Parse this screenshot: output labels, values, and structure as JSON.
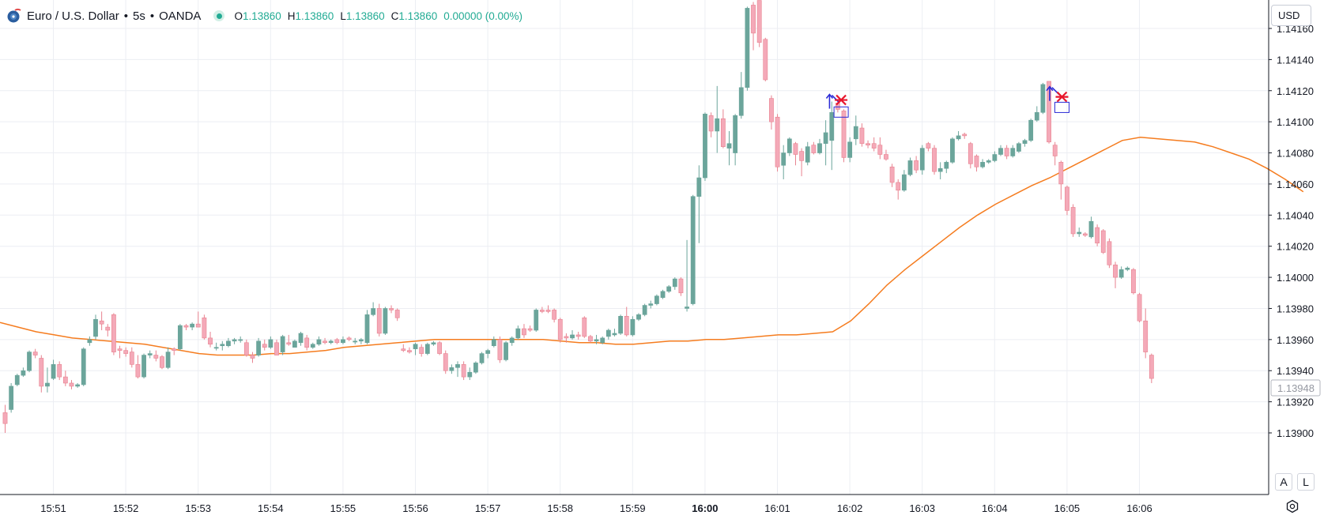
{
  "legend": {
    "symbol": "Euro / U.S. Dollar",
    "separator": "•",
    "interval": "5s",
    "exchange": "OANDA",
    "ohlc": {
      "o_label": "O",
      "o": "1.13860",
      "h_label": "H",
      "h": "1.13860",
      "l_label": "L",
      "l": "1.13860",
      "c_label": "C",
      "c": "1.13860",
      "change": "0.00000 (0.00%)"
    }
  },
  "currency": "USD",
  "axis_buttons": {
    "auto": "A",
    "log": "L"
  },
  "colors": {
    "up": "#6ba59b",
    "down": "#f4a9b8",
    "down_border": "#e8828f",
    "ma": "#f57c1f",
    "grid": "#eceef3",
    "axis_text": "#131722",
    "marker_arrow": "#2b2bd6",
    "marker_cross": "#e8162c"
  },
  "chart_data": {
    "type": "candlestick",
    "x_tick_labels": [
      "15:51",
      "15:52",
      "15:53",
      "15:54",
      "15:55",
      "15:56",
      "15:57",
      "15:58",
      "15:59",
      "16:00",
      "16:01",
      "16:02",
      "16:03",
      "16:04",
      "16:05",
      "16:06"
    ],
    "y_tick_labels": [
      "1.14160",
      "1.14140",
      "1.14120",
      "1.14100",
      "1.14080",
      "1.14060",
      "1.14040",
      "1.14020",
      "1.14000",
      "1.13980",
      "1.13960",
      "1.13940",
      "1.13920",
      "1.13900"
    ],
    "ylim": [
      1.13895,
      1.14183
    ],
    "last_price_label": "1.13948",
    "candles_per_minute": 12,
    "ohlc": [
      [
        1.13913,
        1.13918,
        1.139,
        1.13906
      ],
      [
        1.13915,
        1.13932,
        1.13913,
        1.1393
      ],
      [
        1.13931,
        1.13938,
        1.1393,
        1.13937
      ],
      [
        1.13937,
        1.13942,
        1.13936,
        1.1394
      ],
      [
        1.1394,
        1.13953,
        1.13939,
        1.13952
      ],
      [
        1.13952,
        1.13954,
        1.13948,
        1.1395
      ],
      [
        1.13948,
        1.1395,
        1.13926,
        1.1393
      ],
      [
        1.1393,
        1.13942,
        1.13926,
        1.13932
      ],
      [
        1.13935,
        1.13947,
        1.13934,
        1.13944
      ],
      [
        1.13944,
        1.13946,
        1.13934,
        1.13936
      ],
      [
        1.13936,
        1.1394,
        1.1393,
        1.13932
      ],
      [
        1.13932,
        1.13934,
        1.13928,
        1.1393
      ],
      [
        1.1393,
        1.13932,
        1.13929,
        1.13931
      ],
      [
        1.13931,
        1.13955,
        1.1393,
        1.13954
      ],
      [
        1.13958,
        1.13962,
        1.13956,
        1.1396
      ],
      [
        1.13962,
        1.13976,
        1.1396,
        1.13973
      ],
      [
        1.13972,
        1.13978,
        1.13966,
        1.1397
      ],
      [
        1.13968,
        1.1397,
        1.13962,
        1.13966
      ],
      [
        1.13976,
        1.13977,
        1.1395,
        1.13952
      ],
      [
        1.13954,
        1.13956,
        1.13948,
        1.13953
      ],
      [
        1.13953,
        1.13955,
        1.13949,
        1.13951
      ],
      [
        1.13952,
        1.13955,
        1.13942,
        1.13944
      ],
      [
        1.13944,
        1.1395,
        1.13935,
        1.13936
      ],
      [
        1.13936,
        1.13951,
        1.13935,
        1.1395
      ],
      [
        1.1395,
        1.13953,
        1.13948,
        1.13951
      ],
      [
        1.1395,
        1.13953,
        1.13946,
        1.13948
      ],
      [
        1.13949,
        1.1395,
        1.13941,
        1.13942
      ],
      [
        1.13942,
        1.13955,
        1.13941,
        1.13952
      ],
      [
        1.13954,
        1.13955,
        1.1395,
        1.13953
      ],
      [
        1.13954,
        1.1397,
        1.13953,
        1.13969
      ],
      [
        1.13969,
        1.1397,
        1.13966,
        1.13968
      ],
      [
        1.13968,
        1.13971,
        1.13966,
        1.1397
      ],
      [
        1.1397,
        1.13978,
        1.13968,
        1.13968
      ],
      [
        1.13974,
        1.13976,
        1.1396,
        1.13961
      ],
      [
        1.13961,
        1.13965,
        1.13955,
        1.13957
      ],
      [
        1.13955,
        1.13958,
        1.13953,
        1.13955
      ],
      [
        1.13956,
        1.13959,
        1.13953,
        1.13957
      ],
      [
        1.13956,
        1.13961,
        1.13955,
        1.13959
      ],
      [
        1.13959,
        1.13961,
        1.13957,
        1.1396
      ],
      [
        1.1396,
        1.13962,
        1.13958,
        1.1396
      ],
      [
        1.13958,
        1.1396,
        1.13949,
        1.1395
      ],
      [
        1.1395,
        1.13952,
        1.13945,
        1.13948
      ],
      [
        1.1395,
        1.13961,
        1.13949,
        1.13959
      ],
      [
        1.13957,
        1.1396,
        1.13953,
        1.13955
      ],
      [
        1.13955,
        1.13962,
        1.13954,
        1.1396
      ],
      [
        1.13958,
        1.1396,
        1.1395,
        1.1395
      ],
      [
        1.13952,
        1.13963,
        1.1395,
        1.13962
      ],
      [
        1.13958,
        1.13963,
        1.13956,
        1.13957
      ],
      [
        1.13955,
        1.1396,
        1.13955,
        1.13959
      ],
      [
        1.13958,
        1.13965,
        1.13956,
        1.13964
      ],
      [
        1.13961,
        1.13963,
        1.13953,
        1.13955
      ],
      [
        1.13955,
        1.13958,
        1.13954,
        1.13957
      ],
      [
        1.13957,
        1.13962,
        1.13956,
        1.1396
      ],
      [
        1.13959,
        1.13961,
        1.13957,
        1.13958
      ],
      [
        1.13958,
        1.1396,
        1.13957,
        1.13959
      ],
      [
        1.1396,
        1.13961,
        1.13957,
        1.13958
      ],
      [
        1.13958,
        1.13962,
        1.13957,
        1.1396
      ],
      [
        1.13961,
        1.13962,
        1.13959,
        1.1396
      ],
      [
        1.13959,
        1.13961,
        1.13957,
        1.13959
      ],
      [
        1.13959,
        1.13961,
        1.13957,
        1.1396
      ],
      [
        1.13958,
        1.13979,
        1.13957,
        1.13976
      ],
      [
        1.13976,
        1.13984,
        1.13975,
        1.1398
      ],
      [
        1.1398,
        1.13983,
        1.13962,
        1.13964
      ],
      [
        1.13964,
        1.13981,
        1.13963,
        1.1398
      ],
      [
        1.1398,
        1.13982,
        1.13977,
        1.13979
      ],
      [
        1.13979,
        1.1398,
        1.13972,
        1.13974
      ],
      [
        1.13954,
        1.13957,
        1.13952,
        1.13953
      ],
      [
        1.13953,
        1.13955,
        1.13951,
        1.13952
      ],
      [
        1.13954,
        1.13958,
        1.1395,
        1.13957
      ],
      [
        1.13955,
        1.13957,
        1.13949,
        1.13951
      ],
      [
        1.13951,
        1.13958,
        1.1395,
        1.13957
      ],
      [
        1.13957,
        1.13959,
        1.13956,
        1.13958
      ],
      [
        1.13958,
        1.13959,
        1.1395,
        1.13951
      ],
      [
        1.13951,
        1.13953,
        1.13938,
        1.1394
      ],
      [
        1.1394,
        1.13944,
        1.13938,
        1.13942
      ],
      [
        1.13942,
        1.13946,
        1.13936,
        1.13944
      ],
      [
        1.13944,
        1.13946,
        1.13934,
        1.13936
      ],
      [
        1.13936,
        1.13942,
        1.13934,
        1.13939
      ],
      [
        1.13939,
        1.13946,
        1.13938,
        1.13945
      ],
      [
        1.13945,
        1.13952,
        1.13944,
        1.13951
      ],
      [
        1.13951,
        1.13954,
        1.13948,
        1.13953
      ],
      [
        1.13956,
        1.13962,
        1.13955,
        1.1396
      ],
      [
        1.1396,
        1.13962,
        1.13945,
        1.13947
      ],
      [
        1.13947,
        1.13959,
        1.13946,
        1.13958
      ],
      [
        1.13958,
        1.13962,
        1.13956,
        1.13961
      ],
      [
        1.13961,
        1.13969,
        1.1396,
        1.13967
      ],
      [
        1.13967,
        1.1397,
        1.13961,
        1.13963
      ],
      [
        1.13967,
        1.13969,
        1.13965,
        1.13966
      ],
      [
        1.13966,
        1.1398,
        1.13965,
        1.13979
      ],
      [
        1.13979,
        1.13981,
        1.13977,
        1.13978
      ],
      [
        1.13979,
        1.13982,
        1.13977,
        1.13978
      ],
      [
        1.13979,
        1.1398,
        1.13971,
        1.13973
      ],
      [
        1.13973,
        1.13974,
        1.13958,
        1.1396
      ],
      [
        1.13962,
        1.13964,
        1.13958,
        1.13961
      ],
      [
        1.13961,
        1.13966,
        1.1396,
        1.13963
      ],
      [
        1.13963,
        1.13965,
        1.1396,
        1.13962
      ],
      [
        1.13974,
        1.13975,
        1.13961,
        1.13962
      ],
      [
        1.13962,
        1.13963,
        1.13958,
        1.13959
      ],
      [
        1.13959,
        1.13963,
        1.13957,
        1.1396
      ],
      [
        1.13958,
        1.13962,
        1.13957,
        1.13961
      ],
      [
        1.13962,
        1.13967,
        1.1396,
        1.13966
      ],
      [
        1.13963,
        1.13967,
        1.13962,
        1.13964
      ],
      [
        1.13964,
        1.13976,
        1.13963,
        1.13975
      ],
      [
        1.13975,
        1.13981,
        1.13962,
        1.13963
      ],
      [
        1.13963,
        1.13975,
        1.13962,
        1.13973
      ],
      [
        1.13973,
        1.13977,
        1.13972,
        1.13976
      ],
      [
        1.13976,
        1.13983,
        1.13975,
        1.13982
      ],
      [
        1.13982,
        1.13985,
        1.1398,
        1.13983
      ],
      [
        1.13983,
        1.13989,
        1.13982,
        1.13988
      ],
      [
        1.13987,
        1.13992,
        1.13986,
        1.13991
      ],
      [
        1.13991,
        1.13995,
        1.1399,
        1.13994
      ],
      [
        1.13994,
        1.14,
        1.13992,
        1.13999
      ],
      [
        1.13999,
        1.14,
        1.13988,
        1.1399
      ],
      [
        1.1398,
        1.14024,
        1.13978,
        1.13981
      ],
      [
        1.13983,
        1.14053,
        1.13982,
        1.14052
      ],
      [
        1.14052,
        1.14072,
        1.14022,
        1.14064
      ],
      [
        1.14064,
        1.14106,
        1.14062,
        1.14105
      ],
      [
        1.14104,
        1.14106,
        1.1409,
        1.14094
      ],
      [
        1.14094,
        1.14123,
        1.1408,
        1.14102
      ],
      [
        1.14102,
        1.14108,
        1.14083,
        1.14084
      ],
      [
        1.14083,
        1.14094,
        1.14072,
        1.14086
      ],
      [
        1.1408,
        1.14105,
        1.14072,
        1.14104
      ],
      [
        1.14104,
        1.14132,
        1.14102,
        1.14122
      ],
      [
        1.14122,
        1.14174,
        1.1412,
        1.14173
      ],
      [
        1.14175,
        1.14177,
        1.14146,
        1.14157
      ],
      [
        1.14178,
        1.14178,
        1.14148,
        1.14151
      ],
      [
        1.14153,
        1.14154,
        1.14126,
        1.14127
      ],
      [
        1.14115,
        1.14117,
        1.14095,
        1.141
      ],
      [
        1.14103,
        1.14105,
        1.14068,
        1.14071
      ],
      [
        1.14072,
        1.14085,
        1.14063,
        1.1408
      ],
      [
        1.1408,
        1.1409,
        1.14078,
        1.14089
      ],
      [
        1.14086,
        1.14087,
        1.14072,
        1.14079
      ],
      [
        1.14081,
        1.14083,
        1.14065,
        1.14075
      ],
      [
        1.14074,
        1.14087,
        1.14072,
        1.14084
      ],
      [
        1.14085,
        1.14087,
        1.14079,
        1.1408
      ],
      [
        1.1408,
        1.14089,
        1.14079,
        1.14086
      ],
      [
        1.14086,
        1.14101,
        1.14072,
        1.14093
      ],
      [
        1.14088,
        1.14113,
        1.14069,
        1.14106
      ],
      [
        1.14112,
        1.14114,
        1.14106,
        1.14108
      ],
      [
        1.14107,
        1.14108,
        1.14074,
        1.14077
      ],
      [
        1.14077,
        1.1409,
        1.14074,
        1.14087
      ],
      [
        1.14089,
        1.14104,
        1.14085,
        1.14097
      ],
      [
        1.14096,
        1.14099,
        1.14084,
        1.14086
      ],
      [
        1.14086,
        1.14088,
        1.14083,
        1.14085
      ],
      [
        1.14086,
        1.1409,
        1.14081,
        1.14083
      ],
      [
        1.14085,
        1.1409,
        1.14076,
        1.14079
      ],
      [
        1.14079,
        1.14082,
        1.14075,
        1.14076
      ],
      [
        1.14071,
        1.14073,
        1.14058,
        1.14061
      ],
      [
        1.14061,
        1.14063,
        1.1405,
        1.14056
      ],
      [
        1.14056,
        1.14069,
        1.14055,
        1.14066
      ],
      [
        1.14066,
        1.14077,
        1.14065,
        1.14075
      ],
      [
        1.14075,
        1.14078,
        1.14067,
        1.14069
      ],
      [
        1.14069,
        1.14085,
        1.14066,
        1.14083
      ],
      [
        1.14086,
        1.14087,
        1.14081,
        1.14083
      ],
      [
        1.14083,
        1.14085,
        1.14066,
        1.14068
      ],
      [
        1.14068,
        1.14074,
        1.14063,
        1.1407
      ],
      [
        1.1407,
        1.14075,
        1.14067,
        1.14074
      ],
      [
        1.14074,
        1.1409,
        1.14073,
        1.14089
      ],
      [
        1.14089,
        1.14094,
        1.14088,
        1.14091
      ],
      [
        1.14092,
        1.14093,
        1.14089,
        1.14091
      ],
      [
        1.14086,
        1.14087,
        1.1407,
        1.14073
      ],
      [
        1.14078,
        1.14079,
        1.14068,
        1.14071
      ],
      [
        1.14071,
        1.14076,
        1.1407,
        1.14074
      ],
      [
        1.14074,
        1.14076,
        1.14073,
        1.14075
      ],
      [
        1.14075,
        1.14081,
        1.14074,
        1.14079
      ],
      [
        1.14079,
        1.14085,
        1.14078,
        1.14083
      ],
      [
        1.14083,
        1.14085,
        1.14076,
        1.14078
      ],
      [
        1.14078,
        1.14085,
        1.14077,
        1.14083
      ],
      [
        1.14081,
        1.14087,
        1.1408,
        1.14086
      ],
      [
        1.14086,
        1.14089,
        1.14084,
        1.14088
      ],
      [
        1.14088,
        1.14102,
        1.14087,
        1.14101
      ],
      [
        1.14101,
        1.1411,
        1.141,
        1.14106
      ],
      [
        1.14106,
        1.14125,
        1.14105,
        1.14124
      ],
      [
        1.14126,
        1.14126,
        1.14086,
        1.14087
      ],
      [
        1.14085,
        1.14087,
        1.14072,
        1.14078
      ],
      [
        1.14074,
        1.14075,
        1.1405,
        1.1406
      ],
      [
        1.14058,
        1.14059,
        1.1404,
        1.14043
      ],
      [
        1.14045,
        1.14047,
        1.14026,
        1.14028
      ],
      [
        1.14028,
        1.14032,
        1.14026,
        1.14029
      ],
      [
        1.14028,
        1.14029,
        1.14026,
        1.14027
      ],
      [
        1.14026,
        1.14039,
        1.14025,
        1.14036
      ],
      [
        1.14032,
        1.14034,
        1.1402,
        1.14022
      ],
      [
        1.1403,
        1.14031,
        1.14015,
        1.14016
      ],
      [
        1.14023,
        1.14025,
        1.14006,
        1.14008
      ],
      [
        1.14008,
        1.1401,
        1.13993,
        1.14
      ],
      [
        1.14,
        1.14007,
        1.13999,
        1.14005
      ],
      [
        1.14005,
        1.14007,
        1.14004,
        1.14006
      ],
      [
        1.14005,
        1.14006,
        1.13989,
        1.1399
      ],
      [
        1.13989,
        1.1399,
        1.13971,
        1.13972
      ],
      [
        1.13972,
        1.1398,
        1.13948,
        1.13952
      ],
      [
        1.1395,
        1.13951,
        1.13932,
        1.13935
      ]
    ],
    "moving_average": {
      "points_per_minute": 4,
      "values": [
        1.13971,
        1.13968,
        1.13965,
        1.13963,
        1.13961,
        1.1396,
        1.13959,
        1.13958,
        1.13957,
        1.13955,
        1.13953,
        1.13951,
        1.1395,
        1.1395,
        1.1395,
        1.13951,
        1.13951,
        1.13952,
        1.13953,
        1.13955,
        1.13956,
        1.13957,
        1.13958,
        1.13959,
        1.1396,
        1.1396,
        1.1396,
        1.1396,
        1.1396,
        1.1396,
        1.1396,
        1.13959,
        1.13958,
        1.13958,
        1.13957,
        1.13957,
        1.13958,
        1.13959,
        1.13959,
        1.1396,
        1.1396,
        1.13961,
        1.13962,
        1.13963,
        1.13963,
        1.13964,
        1.13965,
        1.13972,
        1.13983,
        1.13995,
        1.14005,
        1.14014,
        1.14023,
        1.14032,
        1.1404,
        1.14047,
        1.14053,
        1.14059,
        1.14064,
        1.1407,
        1.14076,
        1.14082,
        1.14088,
        1.1409,
        1.14089,
        1.14088,
        1.14087,
        1.14084,
        1.1408,
        1.14076,
        1.1407,
        1.14063,
        1.14055
      ]
    },
    "markers": [
      {
        "type": "arrow-up",
        "minute_offset": 10.72,
        "price": 1.14113
      },
      {
        "type": "cross",
        "minute_offset": 10.88,
        "price": 1.14114
      },
      {
        "type": "box",
        "minute_offset": 10.88,
        "price": 1.14106
      },
      {
        "type": "arrow-up",
        "minute_offset": 13.76,
        "price": 1.14118
      },
      {
        "type": "cross",
        "minute_offset": 13.93,
        "price": 1.14116
      },
      {
        "type": "box",
        "minute_offset": 13.93,
        "price": 1.14109
      }
    ]
  }
}
